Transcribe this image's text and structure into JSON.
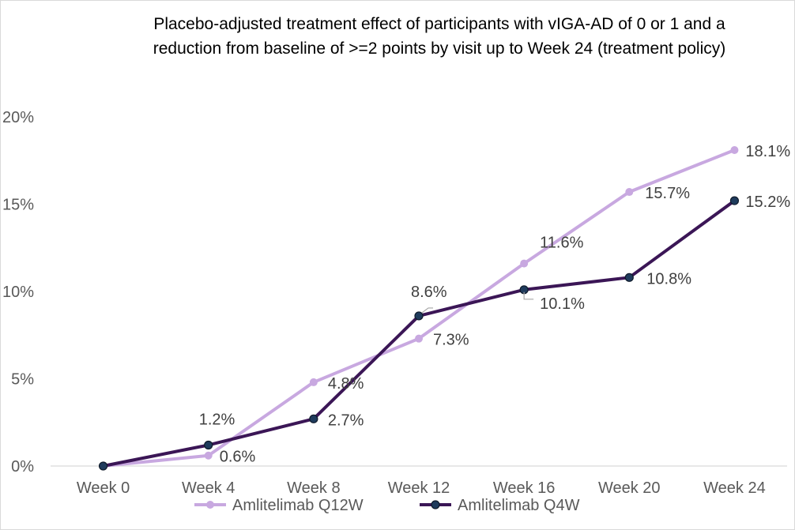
{
  "chart_data": {
    "type": "line",
    "title_lines": [
      "Placebo-adjusted treatment effect of participants with vIGA-AD of 0 or 1 and a",
      "reduction from baseline of >=2 points by visit up to Week 24 (treatment policy)"
    ],
    "categories": [
      "Week 0",
      "Week 4",
      "Week 8",
      "Week 12",
      "Week 16",
      "Week 20",
      "Week 24"
    ],
    "ylim": [
      0,
      20
    ],
    "yticks": [
      "0%",
      "5%",
      "10%",
      "15%",
      "20%"
    ],
    "ytick_values": [
      0,
      5,
      10,
      15,
      20
    ],
    "grid": false,
    "legend_position": "bottom",
    "series": [
      {
        "name": "Amlitelimab Q12W",
        "color": "#c8a8e0",
        "values": [
          0,
          0.6,
          4.8,
          7.3,
          11.6,
          15.7,
          18.1
        ],
        "labels": [
          "",
          "0.6%",
          "4.8%",
          "7.3%",
          "11.6%",
          "15.7%",
          "18.1%"
        ]
      },
      {
        "name": "Amlitelimab Q4W",
        "color": "#3b1656",
        "marker_color": "#1f3b5c",
        "values": [
          0,
          1.2,
          2.7,
          8.6,
          10.1,
          10.8,
          15.2
        ],
        "labels": [
          "",
          "1.2%",
          "2.7%",
          "8.6%",
          "10.1%",
          "10.8%",
          "15.2%"
        ]
      }
    ]
  }
}
